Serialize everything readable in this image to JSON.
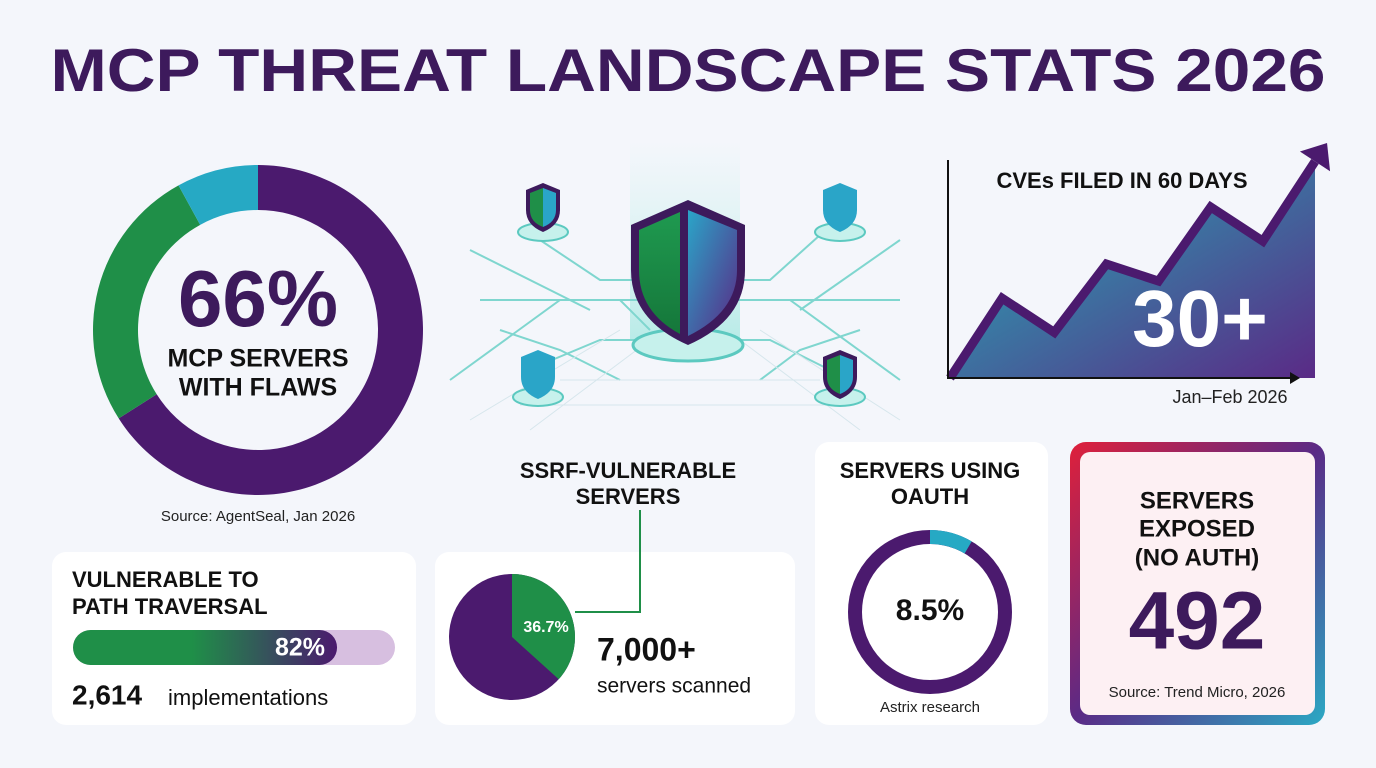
{
  "title": "MCP THREAT LANDSCAPE STATS 2026",
  "flaws": {
    "value_label": "66%",
    "label_lines": [
      "MCP SERVERS",
      "WITH FLAWS"
    ],
    "source": "Source: AgentSeal, Jan 2026",
    "segments": [
      {
        "value": 66,
        "color": "#4b1a6e"
      },
      {
        "value": 26,
        "color": "#1f8f48"
      },
      {
        "value": 8,
        "color": "#26a9c4"
      }
    ]
  },
  "cves": {
    "title": "CVEs FILED IN 60 DAYS",
    "value_label": "30+",
    "period": "Jan–Feb 2026",
    "values": [
      0,
      14,
      8,
      20,
      17,
      30,
      24,
      38
    ],
    "ylim": [
      0,
      40
    ]
  },
  "path_traversal": {
    "title_lines": [
      "VULNERABLE TO",
      "PATH TRAVERSAL"
    ],
    "value": 82,
    "value_label": "82%",
    "count": "2,614",
    "count_label": "implementations"
  },
  "ssrf": {
    "title_lines": [
      "SSRF-VULNERABLE",
      "SERVERS"
    ],
    "value": 36.7,
    "value_label": "36.7%",
    "scanned": "7,000+",
    "scanned_label": "servers scanned"
  },
  "oauth": {
    "title_lines": [
      "SERVERS USING",
      "OAUTH"
    ],
    "value": 8.5,
    "value_label": "8.5%",
    "source": "Astrix research"
  },
  "exposed": {
    "title_lines": [
      "SERVERS",
      "EXPOSED",
      "(NO AUTH)"
    ],
    "value": "492",
    "source": "Source: Trend Micro, 2026"
  }
}
